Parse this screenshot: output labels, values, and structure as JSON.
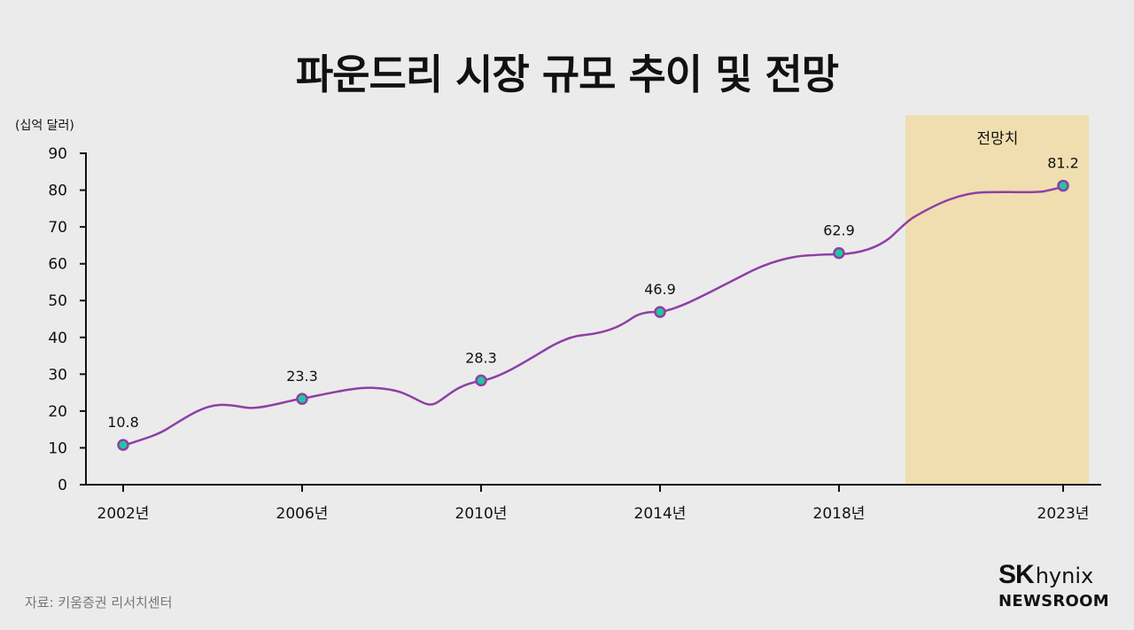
{
  "title": "파운드리 시장 규모 추이 및 전망",
  "unit_label": "(십억 달러)",
  "forecast_label": "전망치",
  "source": "자료: 키움증권 리서치센터",
  "brand": {
    "sk": "SK",
    "hynix": "hynix",
    "newsroom": "NEWSROOM"
  },
  "colors": {
    "background": "#ebebeb",
    "line": "#8e3fa6",
    "marker_fill": "#1ec9a0",
    "marker_stroke": "#8e3fa6",
    "forecast_band": "#f0deb0",
    "axis": "#111111"
  },
  "chart_data": {
    "type": "line",
    "title": "파운드리 시장 규모 추이 및 전망",
    "xlabel": "",
    "ylabel": "(십억 달러)",
    "categories": [
      "2002년",
      "2006년",
      "2010년",
      "2014년",
      "2018년",
      "2023년"
    ],
    "x": [
      2002,
      2006,
      2010,
      2014,
      2018,
      2023
    ],
    "values": [
      10.8,
      23.3,
      28.3,
      46.9,
      62.9,
      81.2
    ],
    "value_labels": [
      "10.8",
      "23.3",
      "28.3",
      "46.9",
      "62.9",
      "81.2"
    ],
    "y_ticks": [
      0,
      10,
      20,
      30,
      40,
      50,
      60,
      70,
      80,
      90
    ],
    "ylim": [
      0,
      90
    ],
    "grid": false,
    "legend": null,
    "annotations": [
      {
        "type": "shaded_region",
        "label": "전망치",
        "x_range": [
          "2019년 이후",
          "2023년"
        ]
      }
    ],
    "smoothed": true
  }
}
